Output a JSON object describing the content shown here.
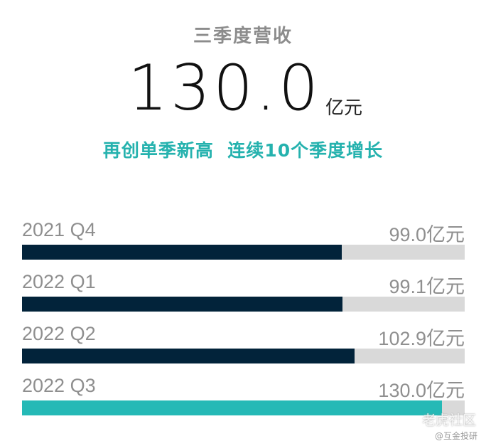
{
  "title": "三季度营收",
  "headline": {
    "value": "130.0",
    "unit": "亿元"
  },
  "subtitle": "再创单季新高  连续10个季度增长",
  "chart_data": {
    "type": "bar",
    "orientation": "horizontal",
    "categories": [
      "2021 Q4",
      "2022 Q1",
      "2022 Q2",
      "2022 Q3"
    ],
    "values": [
      99.0,
      99.1,
      102.9,
      130.0
    ],
    "value_labels": [
      "99.0亿元",
      "99.1亿元",
      "102.9亿元",
      "130.0亿元"
    ],
    "unit": "亿元",
    "xlim": [
      0,
      137
    ],
    "bar_colors": [
      "#02233a",
      "#02233a",
      "#02233a",
      "#25b9b6"
    ],
    "track_color": "#d9d9d9"
  },
  "watermark": {
    "brand": "老虎社区",
    "author": "@互金投研"
  }
}
